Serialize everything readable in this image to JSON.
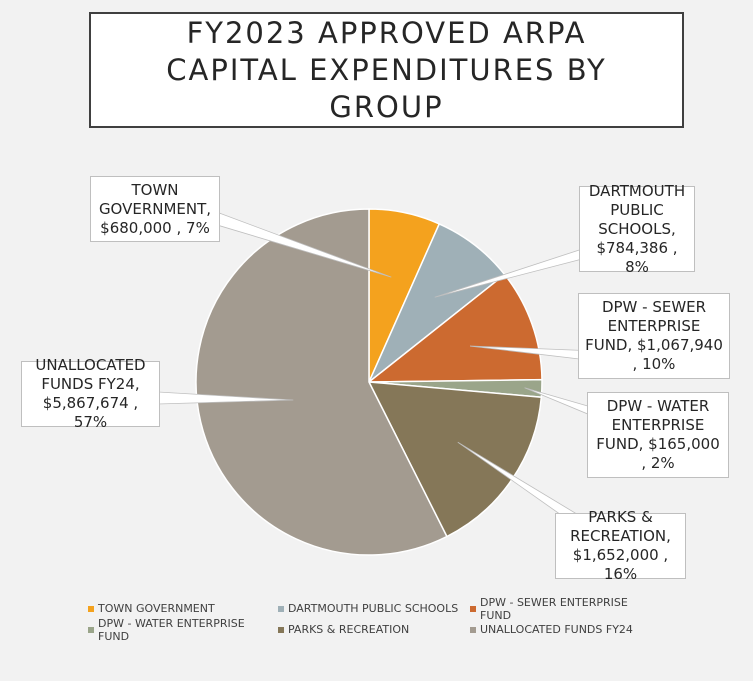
{
  "title": "FY2023 APPROVED ARPA CAPITAL EXPENDITURES BY GROUP",
  "chart_data": {
    "type": "pie",
    "title": "FY2023 APPROVED ARPA CAPITAL EXPENDITURES BY GROUP",
    "categories": [
      "TOWN GOVERNMENT",
      "DARTMOUTH PUBLIC SCHOOLS",
      "DPW - SEWER ENTERPRISE FUND",
      "DPW - WATER ENTERPRISE FUND",
      "PARKS & RECREATION",
      "UNALLOCATED FUNDS FY24"
    ],
    "values": [
      680000,
      784386,
      1067940,
      165000,
      1652000,
      5867674
    ],
    "percent_labels": [
      "7%",
      "8%",
      "10%",
      "2%",
      "16%",
      "57%"
    ],
    "colors": [
      "#f4a21e",
      "#9fb0b7",
      "#cc6a30",
      "#9aa58a",
      "#857758",
      "#a39b90"
    ],
    "data_labels": [
      "TOWN GOVERNMENT, $680,000 , 7%",
      "DARTMOUTH PUBLIC SCHOOLS, $784,386 , 8%",
      "DPW - SEWER ENTERPRISE FUND,  $1,067,940 , 10%",
      "DPW - WATER ENTERPRISE FUND,  $165,000 , 2%",
      "PARKS & RECREATION, $1,652,000 , 16%",
      "UNALLOCATED FUNDS FY24, $5,867,674 , 57%"
    ],
    "legend_position": "bottom"
  }
}
